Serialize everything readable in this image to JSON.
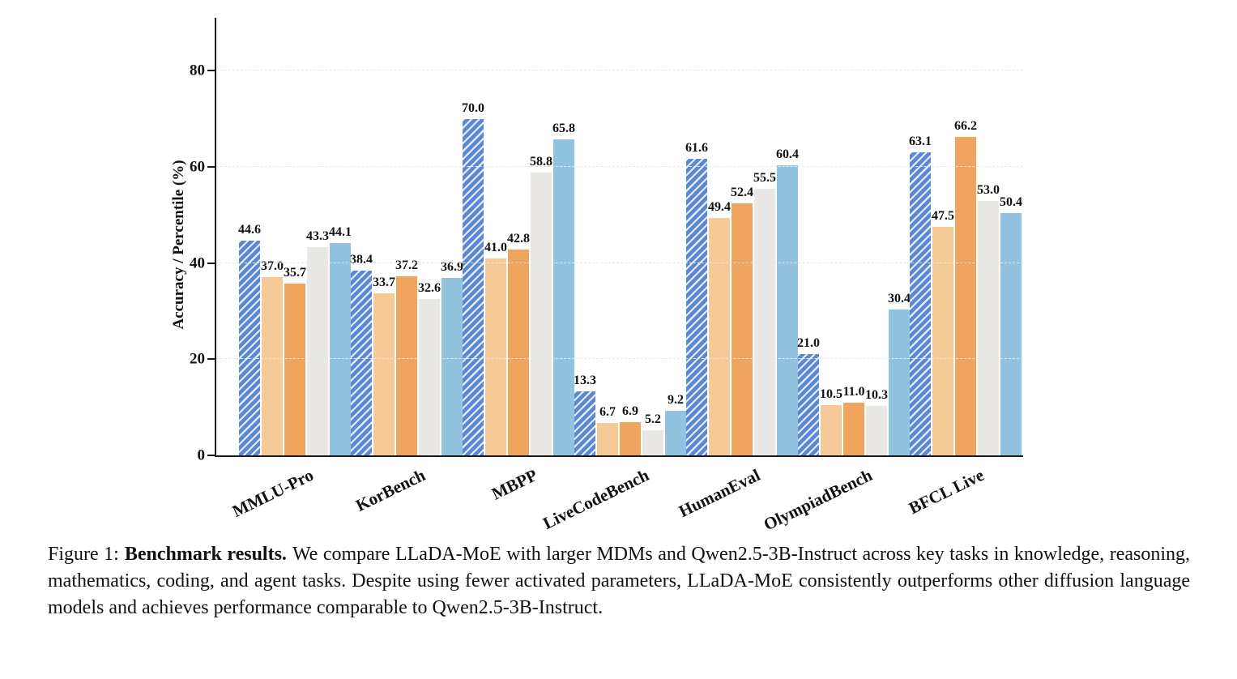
{
  "chart_data": {
    "type": "bar",
    "title": "",
    "xlabel": "",
    "ylabel": "Accuracy / Percentile (%)",
    "ylim": [
      0,
      91
    ],
    "yticks": [
      0,
      20,
      40,
      60,
      80
    ],
    "grid": "faint dashed horizontal gridlines at y ticks",
    "legend_position": "none",
    "value_label_format": "one decimal, bold, above each bar",
    "categories": [
      "MMLU-Pro",
      "KorBench",
      "MBPP",
      "LiveCodeBench",
      "HumanEval",
      "OlympiadBench",
      "BFCL Live"
    ],
    "series": [
      {
        "name": "series-1-blue-hatched",
        "color": "#5b88d6",
        "hatch": "diagonal",
        "values": [
          44.6,
          38.4,
          70.0,
          13.3,
          61.6,
          21.0,
          63.1
        ]
      },
      {
        "name": "series-2-light-orange",
        "color": "#f6ca96",
        "hatch": "none",
        "values": [
          37.0,
          33.7,
          41.0,
          6.7,
          49.4,
          10.5,
          47.5
        ]
      },
      {
        "name": "series-3-orange",
        "color": "#efa55e",
        "hatch": "none",
        "values": [
          35.7,
          37.2,
          42.8,
          6.9,
          52.4,
          11.0,
          66.2
        ]
      },
      {
        "name": "series-4-light-gray",
        "color": "#e9e8e4",
        "hatch": "none",
        "values": [
          43.3,
          32.6,
          58.8,
          5.2,
          55.5,
          10.3,
          53.0
        ]
      },
      {
        "name": "series-5-light-blue",
        "color": "#92c3de",
        "hatch": "none",
        "values": [
          44.1,
          36.9,
          65.8,
          9.2,
          60.4,
          30.4,
          50.4
        ]
      }
    ]
  },
  "caption": {
    "prefix": "Figure 1:",
    "bold": "Benchmark results.",
    "body": "We compare LLaDA-MoE with larger MDMs and Qwen2.5-3B-Instruct across key tasks in knowledge, reasoning, mathematics, coding, and agent tasks. Despite using fewer activated parameters, LLaDA-MoE consistently outperforms other diffusion language models and achieves performance comparable to Qwen2.5-3B-Instruct."
  }
}
